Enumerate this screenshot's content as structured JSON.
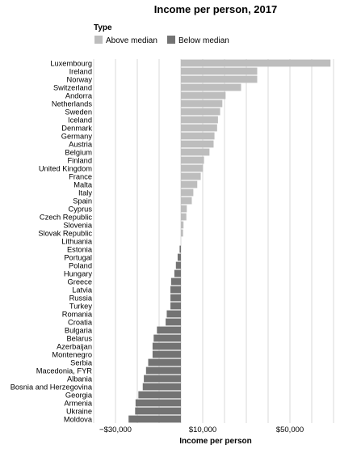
{
  "chart_data": {
    "type": "bar",
    "orientation": "horizontal",
    "title": "Income per person, 2017",
    "xlabel": "Income per person",
    "ylabel": "",
    "xlim": [
      -40000,
      70000
    ],
    "x_ticks": [
      -30000,
      10000,
      50000
    ],
    "x_tick_labels": [
      "−$30,000",
      "$10,000",
      "$50,000"
    ],
    "grid": true,
    "legend": {
      "title": "Type",
      "placement": "top-left",
      "entries": [
        {
          "label": "Above median",
          "color": "#bdbdbd"
        },
        {
          "label": "Below median",
          "color": "#737373"
        }
      ]
    },
    "categories": [
      "Luxembourg",
      "Ireland",
      "Norway",
      "Switzerland",
      "Andorra",
      "Netherlands",
      "Sweden",
      "Iceland",
      "Denmark",
      "Germany",
      "Austria",
      "Belgium",
      "Finland",
      "United Kingdom",
      "France",
      "Malta",
      "Italy",
      "Spain",
      "Cyprus",
      "Czech Republic",
      "Slovenia",
      "Slovak Republic",
      "Lithuania",
      "Estonia",
      "Portugal",
      "Poland",
      "Hungary",
      "Greece",
      "Latvia",
      "Russia",
      "Turkey",
      "Romania",
      "Croatia",
      "Bulgaria",
      "Belarus",
      "Azerbaijan",
      "Montenegro",
      "Serbia",
      "Macedonia, FYR",
      "Albania",
      "Bosnia and Herzegovina",
      "Georgia",
      "Armenia",
      "Ukraine",
      "Moldova"
    ],
    "values": [
      68600,
      35000,
      35000,
      27600,
      20500,
      19000,
      18000,
      17000,
      16600,
      15400,
      15000,
      13100,
      10600,
      10100,
      9100,
      7500,
      5700,
      5000,
      2700,
      2500,
      1200,
      1000,
      0,
      -600,
      -1500,
      -2300,
      -3000,
      -4500,
      -4800,
      -4800,
      -4800,
      -6500,
      -7000,
      -11000,
      -12500,
      -13000,
      -13000,
      -15000,
      -16000,
      -17000,
      -17500,
      -19500,
      -20800,
      -21000,
      -24000
    ],
    "types": [
      "Above median",
      "Above median",
      "Above median",
      "Above median",
      "Above median",
      "Above median",
      "Above median",
      "Above median",
      "Above median",
      "Above median",
      "Above median",
      "Above median",
      "Above median",
      "Above median",
      "Above median",
      "Above median",
      "Above median",
      "Above median",
      "Above median",
      "Above median",
      "Above median",
      "Above median",
      "Below median",
      "Below median",
      "Below median",
      "Below median",
      "Below median",
      "Below median",
      "Below median",
      "Below median",
      "Below median",
      "Below median",
      "Below median",
      "Below median",
      "Below median",
      "Below median",
      "Below median",
      "Below median",
      "Below median",
      "Below median",
      "Below median",
      "Below median",
      "Below median",
      "Below median",
      "Below median"
    ]
  }
}
